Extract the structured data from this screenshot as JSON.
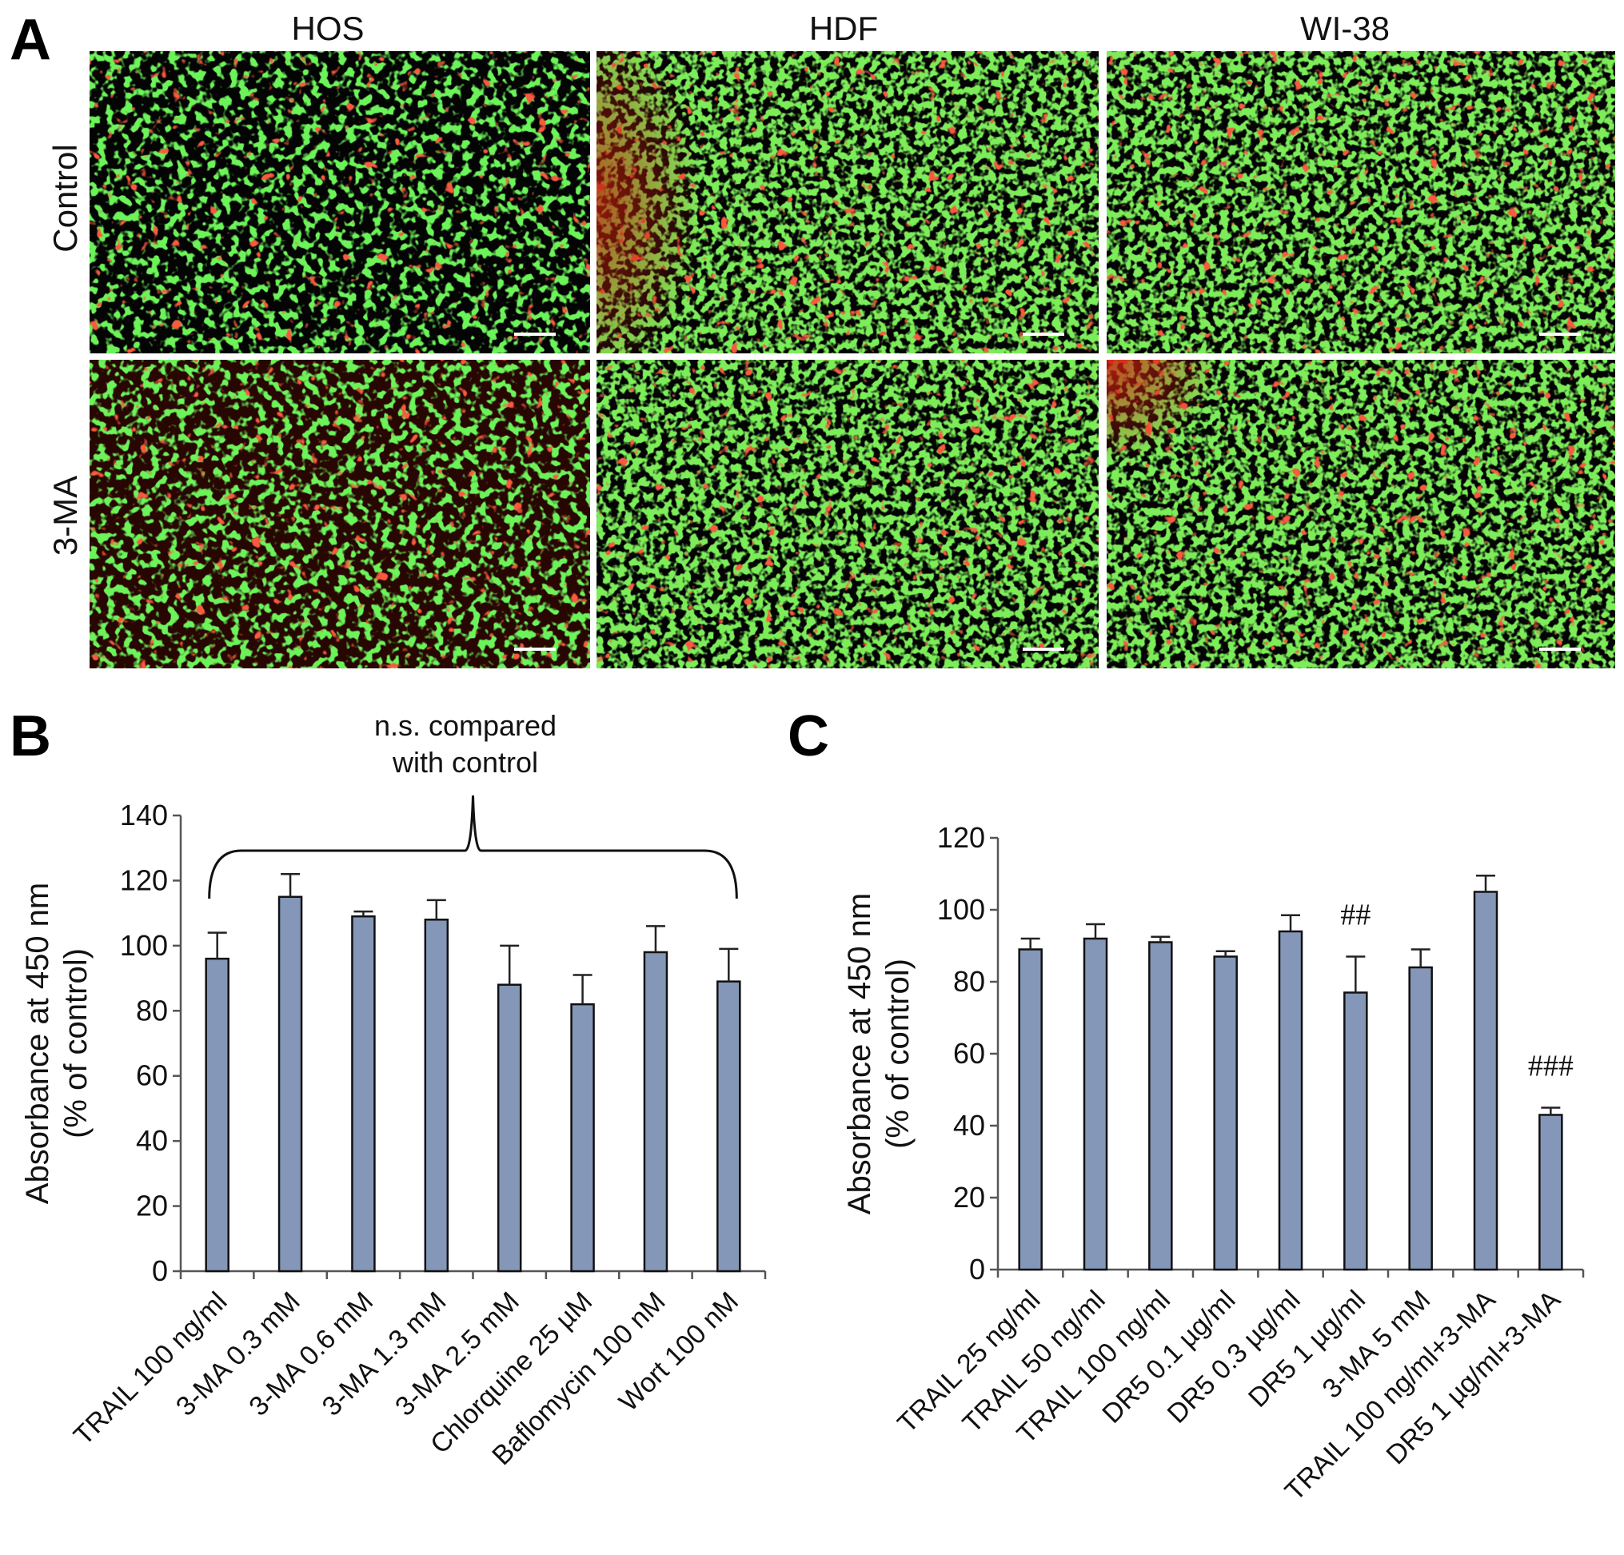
{
  "panel_a": {
    "letter": "A",
    "columns": [
      "HOS",
      "HDF",
      "WI-38"
    ],
    "rows": [
      "Control",
      "3-MA"
    ]
  },
  "chart_data": [
    {
      "panel": "B",
      "type": "bar",
      "ylabel_lines": [
        "Absorbance at 450 nm",
        "(% of control)"
      ],
      "ylim": [
        0,
        140
      ],
      "yticks": [
        0,
        20,
        40,
        60,
        80,
        100,
        120,
        140
      ],
      "categories": [
        "TRAIL 100 ng/ml",
        "3-MA 0.3 mM",
        "3-MA 0.6 mM",
        "3-MA 1.3 mM",
        "3-MA 2.5 mM",
        "Chlorquine 25 µM",
        "Baflomycin 100 nM",
        "Wort 100 nM"
      ],
      "values": [
        96,
        115,
        109,
        108,
        88,
        82,
        98,
        89
      ],
      "errors": [
        8,
        7,
        1.5,
        6,
        12,
        9,
        8,
        10
      ],
      "annotation_lines": [
        "n.s. compared",
        "with control"
      ],
      "bar_color": "#8497b8",
      "grid": false
    },
    {
      "panel": "C",
      "type": "bar",
      "ylabel_lines": [
        "Absorbance at 450 nm",
        "(% of control)"
      ],
      "ylim": [
        0,
        120
      ],
      "yticks": [
        0,
        20,
        40,
        60,
        80,
        100,
        120
      ],
      "categories": [
        "TRAIL 25 ng/ml",
        "TRAIL 50 ng/ml",
        "TRAIL 100 ng/ml",
        "DR5 0.1 µg/ml",
        "DR5 0.3 µg/ml",
        "DR5 1 µg/ml",
        "3-MA 5 mM",
        "TRAIL 100 ng/ml+3-MA",
        "DR5 1 µg/ml+3-MA"
      ],
      "values": [
        89,
        92,
        91,
        87,
        94,
        77,
        84,
        105,
        43
      ],
      "errors": [
        3,
        4,
        1.5,
        1.5,
        4.5,
        10,
        5,
        4.5,
        2
      ],
      "significance": [
        {
          "index": 5,
          "label": "##"
        },
        {
          "index": 8,
          "label": "###"
        }
      ],
      "bar_color": "#8497b8",
      "grid": false
    }
  ]
}
